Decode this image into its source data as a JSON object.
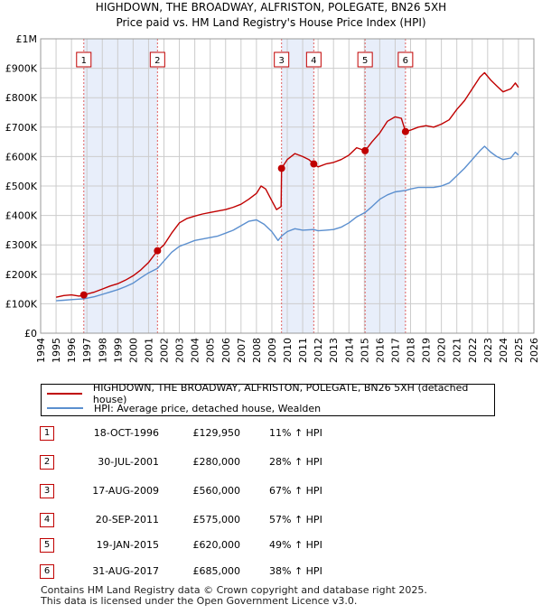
{
  "title_line1": "HIGHDOWN, THE BROADWAY, ALFRISTON, POLEGATE, BN26 5XH",
  "title_line2": "Price paid vs. HM Land Registry's House Price Index (HPI)",
  "colors": {
    "property": "#c00000",
    "hpi": "#5b8fcf",
    "shade": "#e8eefa",
    "grid": "#cccccc",
    "vline": "#e06060"
  },
  "chart_data": {
    "type": "line",
    "x_range": [
      1994,
      2026
    ],
    "y_range": [
      0,
      1000000
    ],
    "y_ticks": [
      0,
      100000,
      200000,
      300000,
      400000,
      500000,
      600000,
      700000,
      800000,
      900000,
      1000000
    ],
    "y_tick_labels": [
      "£0",
      "£100K",
      "£200K",
      "£300K",
      "£400K",
      "£500K",
      "£600K",
      "£700K",
      "£800K",
      "£900K",
      "£1M"
    ],
    "x_ticks": [
      1994,
      1995,
      1996,
      1997,
      1998,
      1999,
      2000,
      2001,
      2002,
      2003,
      2004,
      2005,
      2006,
      2007,
      2008,
      2009,
      2010,
      2011,
      2012,
      2013,
      2014,
      2015,
      2016,
      2017,
      2018,
      2019,
      2020,
      2021,
      2022,
      2023,
      2024,
      2025,
      2026
    ],
    "grid": true,
    "shaded_periods": [
      [
        1996.8,
        2001.58
      ],
      [
        2009.63,
        2011.72
      ],
      [
        2015.05,
        2017.67
      ]
    ],
    "series": [
      {
        "name": "HIGHDOWN, THE BROADWAY, ALFRISTON, POLEGATE, BN26 5XH (detached house)",
        "color": "#c00000",
        "points": [
          [
            1995.0,
            122000
          ],
          [
            1995.5,
            128000
          ],
          [
            1996.0,
            130000
          ],
          [
            1996.5,
            126000
          ],
          [
            1996.8,
            129950
          ],
          [
            1997.5,
            140000
          ],
          [
            1998.0,
            150000
          ],
          [
            1998.5,
            160000
          ],
          [
            1999.0,
            168000
          ],
          [
            1999.5,
            180000
          ],
          [
            2000.0,
            195000
          ],
          [
            2000.5,
            215000
          ],
          [
            2001.0,
            240000
          ],
          [
            2001.58,
            280000
          ],
          [
            2002.0,
            300000
          ],
          [
            2002.5,
            340000
          ],
          [
            2003.0,
            375000
          ],
          [
            2003.5,
            390000
          ],
          [
            2004.0,
            398000
          ],
          [
            2004.5,
            405000
          ],
          [
            2005.0,
            410000
          ],
          [
            2005.5,
            415000
          ],
          [
            2006.0,
            420000
          ],
          [
            2006.5,
            428000
          ],
          [
            2007.0,
            438000
          ],
          [
            2007.5,
            455000
          ],
          [
            2008.0,
            475000
          ],
          [
            2008.3,
            500000
          ],
          [
            2008.6,
            490000
          ],
          [
            2009.0,
            450000
          ],
          [
            2009.3,
            420000
          ],
          [
            2009.6,
            430000
          ],
          [
            2009.63,
            560000
          ],
          [
            2010.0,
            590000
          ],
          [
            2010.5,
            610000
          ],
          [
            2011.0,
            600000
          ],
          [
            2011.4,
            590000
          ],
          [
            2011.72,
            575000
          ],
          [
            2012.0,
            565000
          ],
          [
            2012.5,
            575000
          ],
          [
            2013.0,
            580000
          ],
          [
            2013.5,
            590000
          ],
          [
            2014.0,
            605000
          ],
          [
            2014.5,
            630000
          ],
          [
            2015.05,
            620000
          ],
          [
            2015.5,
            650000
          ],
          [
            2016.0,
            680000
          ],
          [
            2016.5,
            720000
          ],
          [
            2017.0,
            735000
          ],
          [
            2017.4,
            730000
          ],
          [
            2017.67,
            685000
          ],
          [
            2018.0,
            690000
          ],
          [
            2018.5,
            700000
          ],
          [
            2019.0,
            705000
          ],
          [
            2019.5,
            700000
          ],
          [
            2020.0,
            710000
          ],
          [
            2020.5,
            725000
          ],
          [
            2021.0,
            760000
          ],
          [
            2021.5,
            790000
          ],
          [
            2022.0,
            830000
          ],
          [
            2022.5,
            870000
          ],
          [
            2022.8,
            885000
          ],
          [
            2023.2,
            860000
          ],
          [
            2023.6,
            840000
          ],
          [
            2024.0,
            820000
          ],
          [
            2024.5,
            830000
          ],
          [
            2024.8,
            850000
          ],
          [
            2025.0,
            835000
          ]
        ]
      },
      {
        "name": "HPI: Average price, detached house, Wealden",
        "color": "#5b8fcf",
        "points": [
          [
            1995.0,
            110000
          ],
          [
            1995.5,
            112000
          ],
          [
            1996.0,
            114000
          ],
          [
            1996.8,
            117000
          ],
          [
            1997.5,
            124000
          ],
          [
            1998.0,
            132000
          ],
          [
            1998.5,
            140000
          ],
          [
            1999.0,
            148000
          ],
          [
            1999.5,
            158000
          ],
          [
            2000.0,
            170000
          ],
          [
            2000.5,
            188000
          ],
          [
            2001.0,
            205000
          ],
          [
            2001.58,
            220000
          ],
          [
            2002.0,
            245000
          ],
          [
            2002.5,
            275000
          ],
          [
            2003.0,
            295000
          ],
          [
            2003.5,
            305000
          ],
          [
            2004.0,
            315000
          ],
          [
            2004.5,
            320000
          ],
          [
            2005.0,
            325000
          ],
          [
            2005.5,
            330000
          ],
          [
            2006.0,
            340000
          ],
          [
            2006.5,
            350000
          ],
          [
            2007.0,
            365000
          ],
          [
            2007.5,
            380000
          ],
          [
            2008.0,
            385000
          ],
          [
            2008.5,
            370000
          ],
          [
            2009.0,
            345000
          ],
          [
            2009.4,
            315000
          ],
          [
            2009.63,
            330000
          ],
          [
            2010.0,
            345000
          ],
          [
            2010.5,
            355000
          ],
          [
            2011.0,
            350000
          ],
          [
            2011.72,
            352000
          ],
          [
            2012.0,
            348000
          ],
          [
            2012.5,
            350000
          ],
          [
            2013.0,
            352000
          ],
          [
            2013.5,
            360000
          ],
          [
            2014.0,
            375000
          ],
          [
            2014.5,
            395000
          ],
          [
            2015.05,
            410000
          ],
          [
            2015.5,
            430000
          ],
          [
            2016.0,
            455000
          ],
          [
            2016.5,
            470000
          ],
          [
            2017.0,
            480000
          ],
          [
            2017.67,
            485000
          ],
          [
            2018.0,
            490000
          ],
          [
            2018.5,
            495000
          ],
          [
            2019.0,
            495000
          ],
          [
            2019.5,
            495000
          ],
          [
            2020.0,
            500000
          ],
          [
            2020.5,
            510000
          ],
          [
            2021.0,
            535000
          ],
          [
            2021.5,
            560000
          ],
          [
            2022.0,
            590000
          ],
          [
            2022.5,
            620000
          ],
          [
            2022.8,
            635000
          ],
          [
            2023.2,
            615000
          ],
          [
            2023.6,
            600000
          ],
          [
            2024.0,
            590000
          ],
          [
            2024.5,
            595000
          ],
          [
            2024.8,
            615000
          ],
          [
            2025.0,
            605000
          ]
        ]
      }
    ],
    "sales": [
      {
        "label": "1",
        "x": 1996.8,
        "y": 129950
      },
      {
        "label": "2",
        "x": 2001.58,
        "y": 280000
      },
      {
        "label": "3",
        "x": 2009.63,
        "y": 560000
      },
      {
        "label": "4",
        "x": 2011.72,
        "y": 575000
      },
      {
        "label": "5",
        "x": 2015.05,
        "y": 620000
      },
      {
        "label": "6",
        "x": 2017.67,
        "y": 685000
      }
    ]
  },
  "legend": {
    "property_label": "HIGHDOWN, THE BROADWAY, ALFRISTON, POLEGATE, BN26 5XH (detached house)",
    "hpi_label": "HPI: Average price, detached house, Wealden"
  },
  "sales_table": [
    {
      "num": "1",
      "date": "18-OCT-1996",
      "price": "£129,950",
      "hpi": "11% ↑ HPI"
    },
    {
      "num": "2",
      "date": "30-JUL-2001",
      "price": "£280,000",
      "hpi": "28% ↑ HPI"
    },
    {
      "num": "3",
      "date": "17-AUG-2009",
      "price": "£560,000",
      "hpi": "67% ↑ HPI"
    },
    {
      "num": "4",
      "date": "20-SEP-2011",
      "price": "£575,000",
      "hpi": "57% ↑ HPI"
    },
    {
      "num": "5",
      "date": "19-JAN-2015",
      "price": "£620,000",
      "hpi": "49% ↑ HPI"
    },
    {
      "num": "6",
      "date": "31-AUG-2017",
      "price": "£685,000",
      "hpi": "38% ↑ HPI"
    }
  ],
  "footer_line1": "Contains HM Land Registry data © Crown copyright and database right 2025.",
  "footer_line2": "This data is licensed under the Open Government Licence v3.0."
}
